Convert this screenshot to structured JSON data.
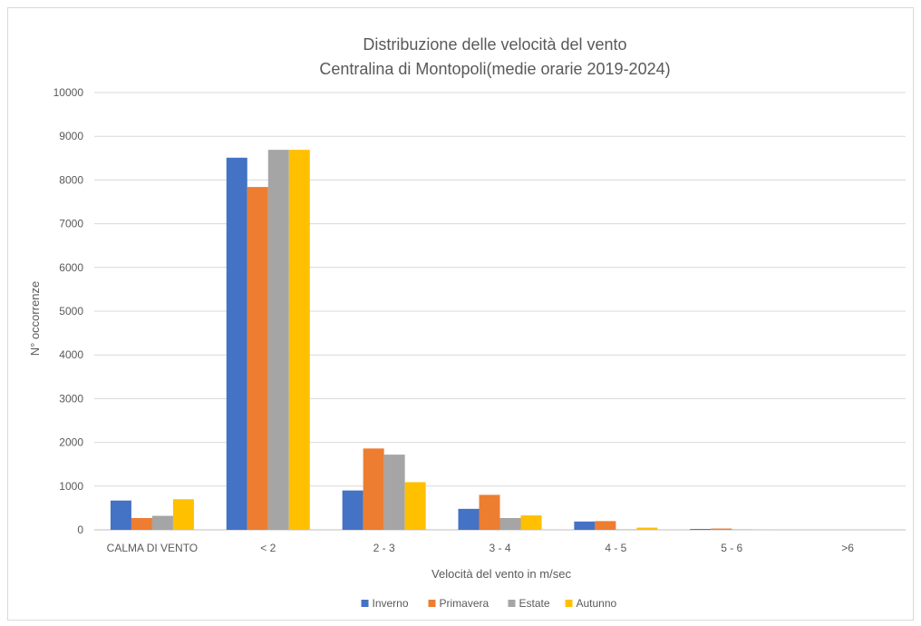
{
  "chart_data": {
    "type": "bar",
    "title": "Distribuzione delle velocità del vento",
    "subtitle": "Centralina di Montopoli(medie orarie 2019-2024)",
    "xlabel": "Velocità del vento in m/sec",
    "ylabel": "N° occorrenze",
    "ylim": [
      0,
      10000
    ],
    "yticks": [
      0,
      1000,
      2000,
      3000,
      4000,
      5000,
      6000,
      7000,
      8000,
      9000,
      10000
    ],
    "ytick_labels": [
      "0",
      "1000",
      "2000",
      "3000",
      "4000",
      "5000",
      "6000",
      "7000",
      "8000",
      "9000",
      "10000"
    ],
    "grid": true,
    "legend_position": "bottom",
    "categories": [
      "CALMA DI VENTO",
      "< 2",
      "2 - 3",
      "3 - 4",
      "4 - 5",
      "5 - 6",
      ">6"
    ],
    "series": [
      {
        "name": "Inverno",
        "color": "#4472C4",
        "values": [
          670,
          8510,
          900,
          480,
          190,
          20,
          0
        ]
      },
      {
        "name": "Primavera",
        "color": "#ED7D31",
        "values": [
          270,
          7840,
          1860,
          800,
          200,
          30,
          0
        ]
      },
      {
        "name": "Estate",
        "color": "#A5A5A5",
        "values": [
          320,
          8690,
          1720,
          270,
          10,
          10,
          0
        ]
      },
      {
        "name": "Autunno",
        "color": "#FFC000",
        "values": [
          700,
          8690,
          1090,
          330,
          50,
          10,
          0
        ]
      }
    ]
  }
}
